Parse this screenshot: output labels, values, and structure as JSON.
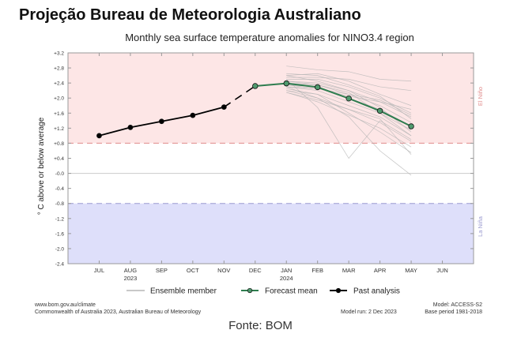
{
  "page_title": "Projeção Bureau de Meteorologia Australiano",
  "source": "Fonte: BOM",
  "footer": {
    "left_1": "www.bom.gov.au/climate",
    "left_2": "Commonwealth of Australia 2023, Australian Bureau of Meteorology",
    "model_run": "Model run: 2 Dec 2023",
    "model": "Model: ACCESS-S2",
    "base_period": "Base period 1981-2018"
  },
  "chart_data": {
    "type": "line",
    "title": "Monthly sea surface temperature anomalies for NINO3.4 region",
    "ylabel": "° C above or below average",
    "xlabel": "",
    "categories": [
      "JUL",
      "AUG",
      "SEP",
      "OCT",
      "NOV",
      "DEC",
      "JAN",
      "FEB",
      "MAR",
      "APR",
      "MAY",
      "JUN"
    ],
    "year_labels": [
      {
        "index": 1,
        "label": "2023"
      },
      {
        "index": 6,
        "label": "2024"
      }
    ],
    "ylim": [
      -2.4,
      3.2
    ],
    "xlim": [
      -1,
      12
    ],
    "yticks": [
      "+3.2",
      "+2.8",
      "+2.4",
      "+2.0",
      "+1.6",
      "+1.2",
      "+0.8",
      "+0.4",
      "-0.0",
      "-0.4",
      "-0.8",
      "-1.2",
      "-1.6",
      "-2.0",
      "-2.4"
    ],
    "thresholds": {
      "el_nino": 0.8,
      "la_nina": -0.8
    },
    "region_labels": {
      "el_nino": "El Niño",
      "la_nina": "La Niña"
    },
    "colors": {
      "el_nino_fill": "#fde6e6",
      "la_nina_fill": "#dedffa",
      "el_nino_line": "#e08b8b",
      "la_nina_line": "#9a9ad0",
      "forecast": "#2e7d4f",
      "forecast_marker": "#4f9a6e",
      "past": "#000000",
      "ensemble": "#b5b5b5"
    },
    "legend": {
      "placement": "bottom",
      "entries": [
        "Ensemble member",
        "Forecast mean",
        "Past analysis"
      ]
    },
    "series": [
      {
        "name": "Past analysis",
        "x": [
          0,
          1,
          2,
          3,
          4
        ],
        "values": [
          1.0,
          1.22,
          1.38,
          1.54,
          1.76
        ]
      },
      {
        "name": "Connector",
        "x": [
          4,
          5
        ],
        "values": [
          1.76,
          2.32
        ],
        "dashed": true
      },
      {
        "name": "Forecast mean",
        "x": [
          5,
          6,
          7,
          8,
          9,
          10
        ],
        "values": [
          2.32,
          2.39,
          2.29,
          1.99,
          1.66,
          1.25
        ]
      }
    ],
    "ensemble_x": [
      6,
      7,
      8,
      9,
      10
    ],
    "ensemble": [
      [
        2.85,
        2.75,
        2.7,
        2.5,
        2.45
      ],
      [
        2.6,
        2.65,
        2.45,
        2.1,
        1.8
      ],
      [
        2.5,
        2.5,
        2.3,
        2.0,
        1.6
      ],
      [
        2.45,
        2.4,
        2.2,
        1.9,
        1.5
      ],
      [
        2.4,
        2.35,
        2.1,
        1.8,
        1.35
      ],
      [
        2.35,
        2.3,
        2.0,
        1.7,
        1.25
      ],
      [
        2.3,
        2.2,
        1.9,
        1.6,
        1.15
      ],
      [
        2.25,
        2.1,
        1.8,
        1.5,
        1.0
      ],
      [
        2.2,
        2.0,
        1.7,
        1.35,
        0.85
      ],
      [
        2.15,
        1.9,
        1.55,
        1.2,
        0.7
      ],
      [
        2.5,
        1.75,
        0.4,
        1.4,
        0.9
      ],
      [
        2.3,
        2.0,
        1.5,
        0.6,
        -0.05
      ],
      [
        2.55,
        2.55,
        2.5,
        2.3,
        2.2
      ],
      [
        2.35,
        2.25,
        2.05,
        1.9,
        1.7
      ],
      [
        2.6,
        2.45,
        2.2,
        1.75,
        1.1
      ],
      [
        2.2,
        2.1,
        1.6,
        1.1,
        0.55
      ],
      [
        2.45,
        2.35,
        2.15,
        1.6,
        1.0
      ],
      [
        2.3,
        2.25,
        2.1,
        1.95,
        1.55
      ],
      [
        2.65,
        2.6,
        2.35,
        2.05,
        1.45
      ],
      [
        2.15,
        1.95,
        1.7,
        1.45,
        0.5
      ]
    ]
  }
}
